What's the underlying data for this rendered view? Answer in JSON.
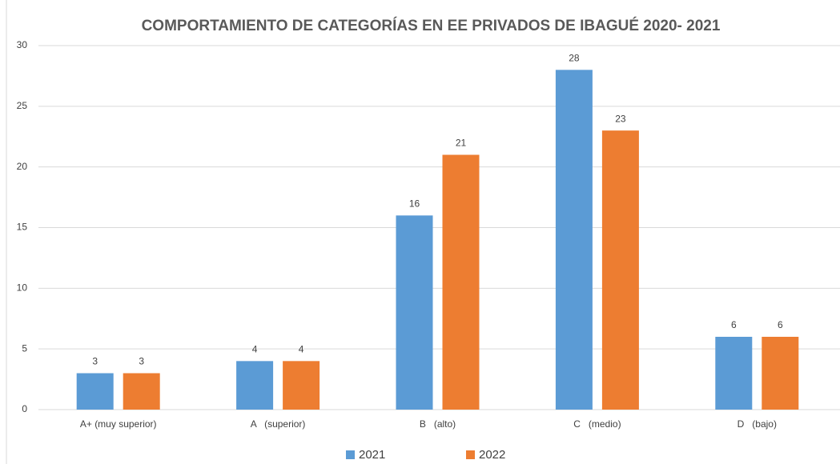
{
  "chart_data": {
    "type": "bar",
    "title": "COMPORTAMIENTO DE CATEGORÍAS EN EE PRIVADOS DE IBAGUÉ 2020- 2021",
    "categories": [
      "A+ (muy superior)",
      "A   (superior)",
      "B   (alto)",
      "C   (medio)",
      "D   (bajo)"
    ],
    "series": [
      {
        "name": "2021",
        "color": "#5b9bd5",
        "values": [
          3,
          4,
          16,
          28,
          6
        ]
      },
      {
        "name": "2022",
        "color": "#ed7d31",
        "values": [
          3,
          4,
          21,
          23,
          6
        ]
      }
    ],
    "ylim": [
      0,
      30
    ],
    "yticks": [
      0,
      5,
      10,
      15,
      20,
      25,
      30
    ],
    "grid": true,
    "legend": "bottom"
  }
}
